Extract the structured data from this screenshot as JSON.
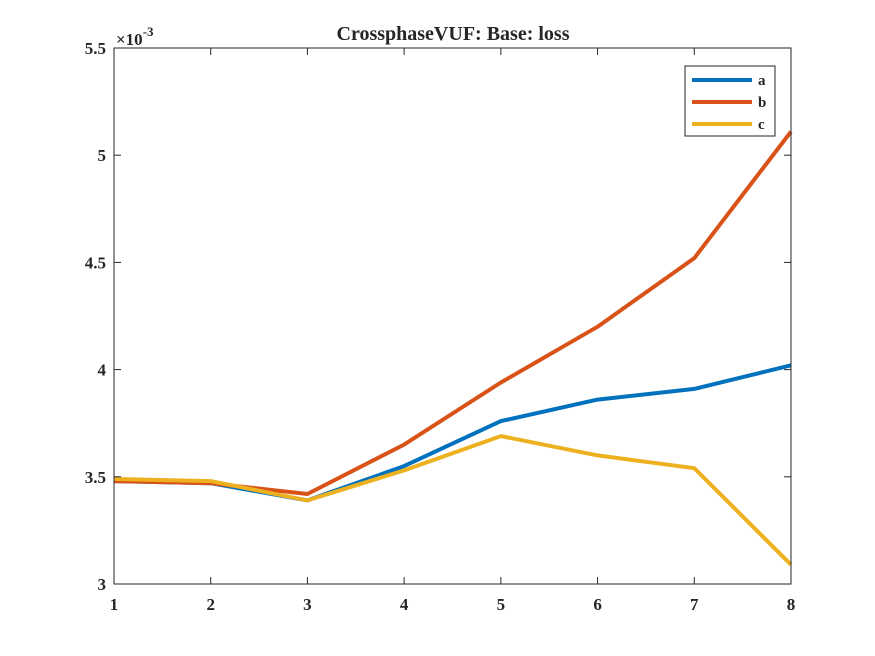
{
  "chart_data": {
    "type": "line",
    "title": "CrossphaseVUF: Base: loss",
    "xlabel": "",
    "ylabel": "",
    "y_exponent_label": "×10",
    "y_exponent_power": "-3",
    "x": [
      1,
      2,
      3,
      4,
      5,
      6,
      7,
      8
    ],
    "xlim": [
      1,
      8
    ],
    "ylim": [
      3.0,
      5.5
    ],
    "x_ticks": [
      "1",
      "2",
      "3",
      "4",
      "5",
      "6",
      "7",
      "8"
    ],
    "y_ticks": [
      "3",
      "3.5",
      "4",
      "4.5",
      "5",
      "5.5"
    ],
    "y_tick_values": [
      3.0,
      3.5,
      4.0,
      4.5,
      5.0,
      5.5
    ],
    "grid": false,
    "legend_position": "top-right",
    "series": [
      {
        "name": "a",
        "color": "#0072BD",
        "values": [
          3.48,
          3.47,
          3.39,
          3.55,
          3.76,
          3.86,
          3.91,
          4.02
        ]
      },
      {
        "name": "b",
        "color": "#D95319",
        "values": [
          3.48,
          3.47,
          3.42,
          3.65,
          3.94,
          4.2,
          4.52,
          5.11
        ]
      },
      {
        "name": "c",
        "color": "#EDB120",
        "values": [
          3.49,
          3.48,
          3.39,
          3.53,
          3.69,
          3.6,
          3.54,
          3.09
        ]
      }
    ]
  }
}
